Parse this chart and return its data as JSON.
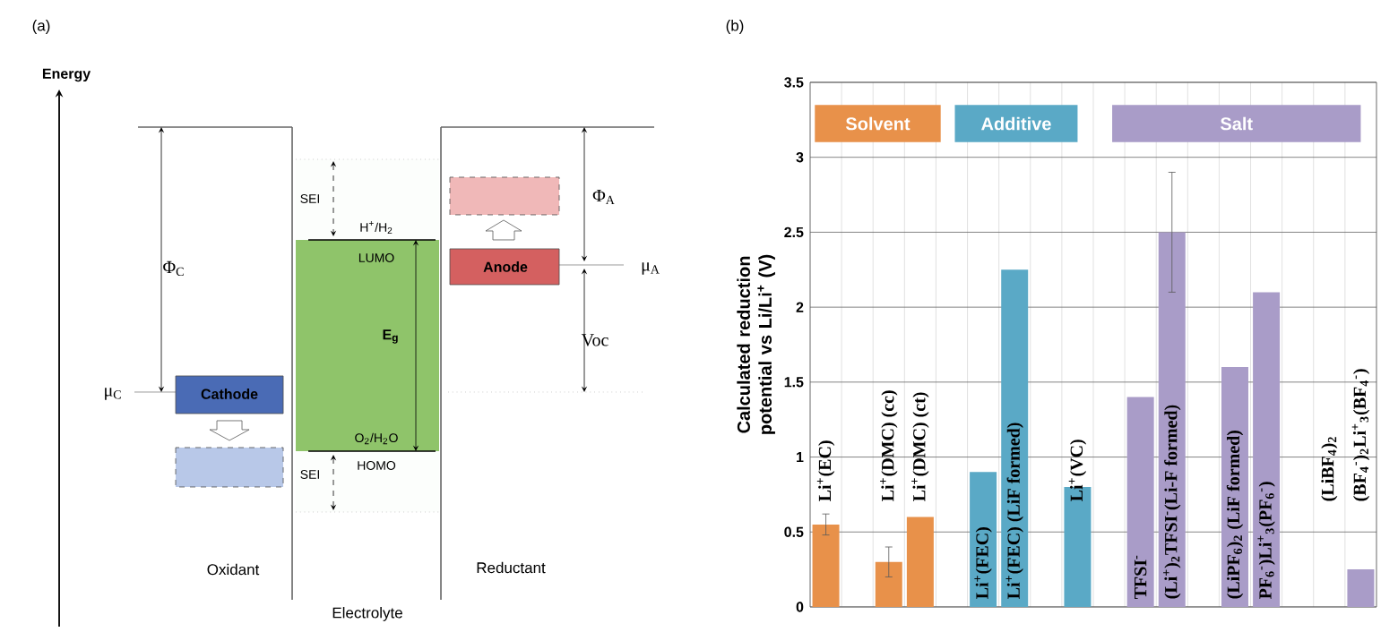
{
  "chart_data": [
    {
      "type": "other",
      "annotations": [
        "(a)",
        "Energy",
        "Φ$_{C}$",
        "μ$_{C}$",
        "Cathode",
        "SEI",
        "H$^{+}$/H$_{2}$",
        "LUMO",
        "E$_{g}$",
        "O$_{2}$/H$_{2}$O",
        "HOMO",
        "SEI",
        "Anode",
        "Φ$_{A}$",
        "μ$_{A}$",
        "Voc",
        "Oxidant",
        "Reductant",
        "Electrolyte"
      ]
    },
    {
      "type": "bar",
      "annotations": [
        "(b)"
      ],
      "ylabel": "Calculated reduction potential vs Li/Li$^{+}$ (V)",
      "categories": [
        "Li$^{+}$(EC)",
        null,
        "Li$^{+}$(DMC) (cc)",
        "Li$^{+}$(DMC) (ct)",
        null,
        "Li$^{+}$(FEC)",
        "Li$^{+}$(FEC) (LiF formed)",
        null,
        "Li$^{+}$(VC)",
        null,
        "TFSI$^{-}$",
        "(Li$^{+}$)$_{2}$TFSI$^{-}$(Li-F formed)",
        null,
        "(LiPF$_{6}$)$_{2}$ (LiF formed)",
        "PF$_{6}$$^{-}$)Li$^{+}$$_{3}$(PF$_{6}$$^{-}$)",
        null,
        "(LiBF$_{4}$)$_{2}$",
        "(BF$_{4}$$^{-}$)$_{2}$Li$^{+}$$_{3}$(BF$_{4}$$^{-}$)"
      ],
      "series": [
        {
          "name": "Solvent",
          "color": "#e8914a",
          "values": [
            0.55,
            null,
            0.3,
            0.6,
            null,
            null,
            null,
            null,
            null,
            null,
            null,
            null,
            null,
            null,
            null,
            null,
            null,
            null
          ],
          "errors": [
            0.07,
            null,
            0.1,
            null,
            null,
            null,
            null,
            null,
            null,
            null,
            null,
            null,
            null,
            null,
            null,
            null,
            null,
            null
          ]
        },
        {
          "name": "Additive",
          "color": "#5aa9c6",
          "values": [
            null,
            null,
            null,
            null,
            null,
            0.9,
            2.25,
            null,
            0.8,
            null,
            null,
            null,
            null,
            null,
            null,
            null,
            null,
            null
          ]
        },
        {
          "name": "Salt",
          "color": "#a99cc8",
          "values": [
            null,
            null,
            null,
            null,
            null,
            null,
            null,
            null,
            null,
            null,
            1.4,
            2.5,
            null,
            1.6,
            2.1,
            null,
            null,
            0.25
          ],
          "errors": [
            null,
            null,
            null,
            null,
            null,
            null,
            null,
            null,
            null,
            null,
            null,
            0.4,
            null,
            null,
            null,
            null,
            null,
            null
          ]
        }
      ],
      "ylim": [
        0,
        3.5
      ],
      "yticks": [
        0,
        0.5,
        1,
        1.5,
        2,
        2.5,
        3,
        3.5
      ],
      "grid": true,
      "legend": "top"
    }
  ]
}
